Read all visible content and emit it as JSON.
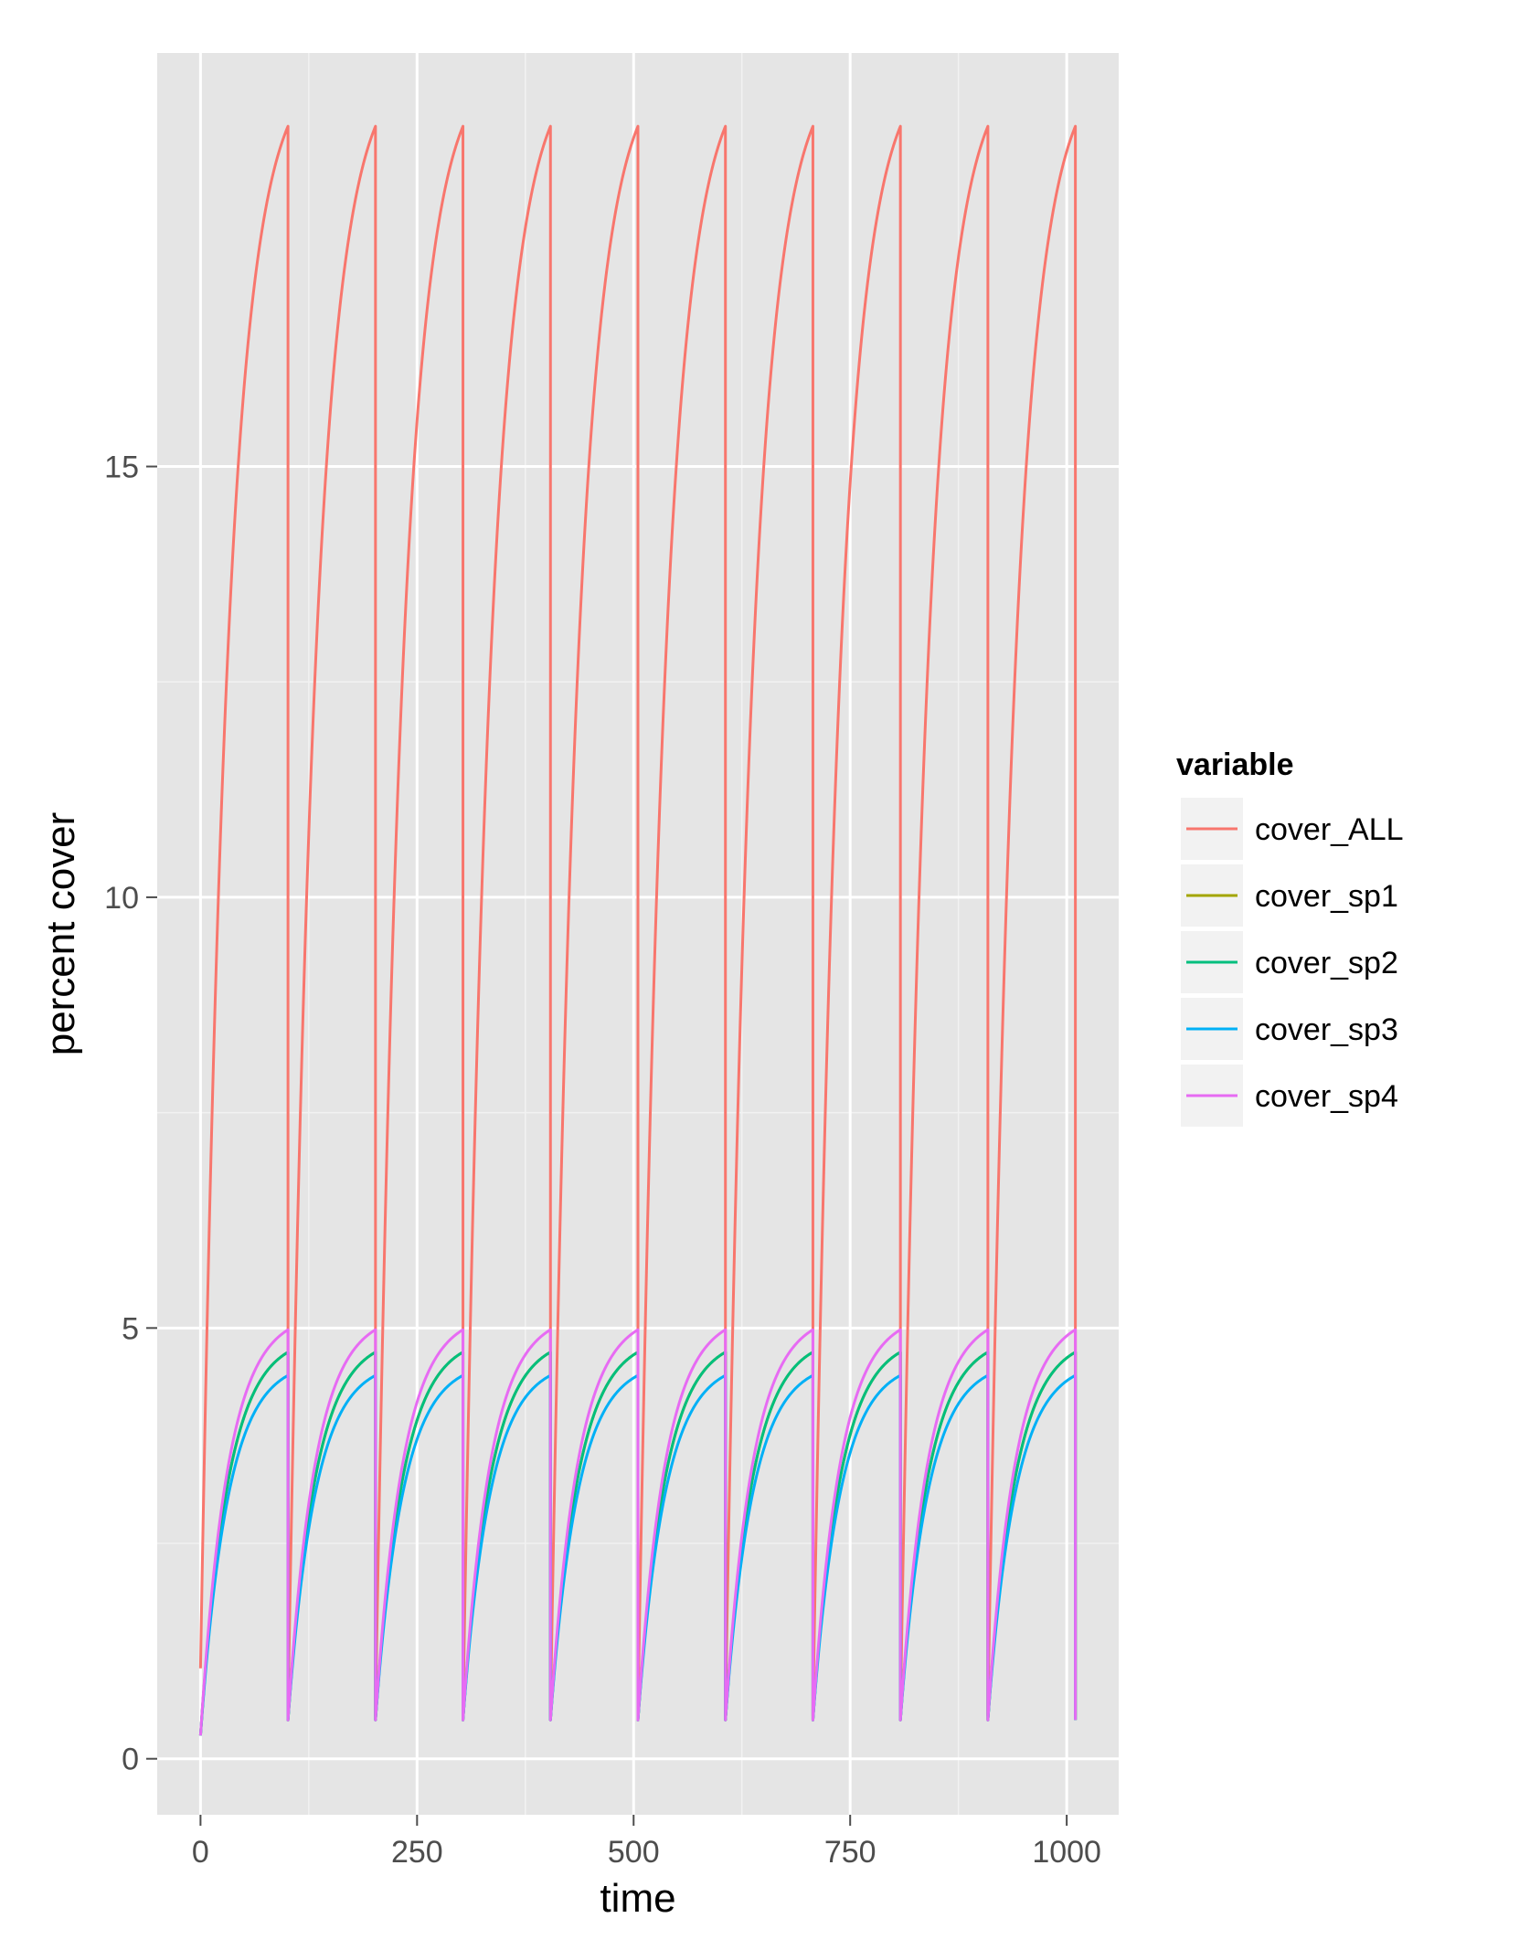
{
  "chart_data": {
    "type": "line",
    "title": "",
    "xlabel": "time",
    "ylabel": "percent cover",
    "xlim": [
      -50,
      1060
    ],
    "ylim": [
      -0.65,
      19.8
    ],
    "x_ticks": [
      0,
      250,
      500,
      750,
      1000
    ],
    "x_tick_labels": [
      "0",
      "250",
      "500",
      "750",
      "1000"
    ],
    "y_ticks": [
      0,
      5,
      10,
      15
    ],
    "y_tick_labels": [
      "0",
      "5",
      "10",
      "15"
    ],
    "grid": true,
    "legend_position": "right",
    "legend_title": "variable",
    "cycle_length": 101,
    "cycles": 10,
    "series": [
      {
        "name": "cover_ALL",
        "color": "#F8766D",
        "first_cycle_start": 1.05,
        "reset_value": 0.5,
        "peak_value": 18.95
      },
      {
        "name": "cover_sp1",
        "color": "#A3A500",
        "first_cycle_start": 0.27,
        "reset_value": 0.45,
        "peak_value": 4.72
      },
      {
        "name": "cover_sp2",
        "color": "#00BF7D",
        "first_cycle_start": 0.27,
        "reset_value": 0.45,
        "peak_value": 4.72
      },
      {
        "name": "cover_sp3",
        "color": "#00B0F6",
        "first_cycle_start": 0.27,
        "reset_value": 0.45,
        "peak_value": 4.45
      },
      {
        "name": "cover_sp4",
        "color": "#E76BF3",
        "first_cycle_start": 0.27,
        "reset_value": 0.45,
        "peak_value": 4.98
      }
    ]
  }
}
